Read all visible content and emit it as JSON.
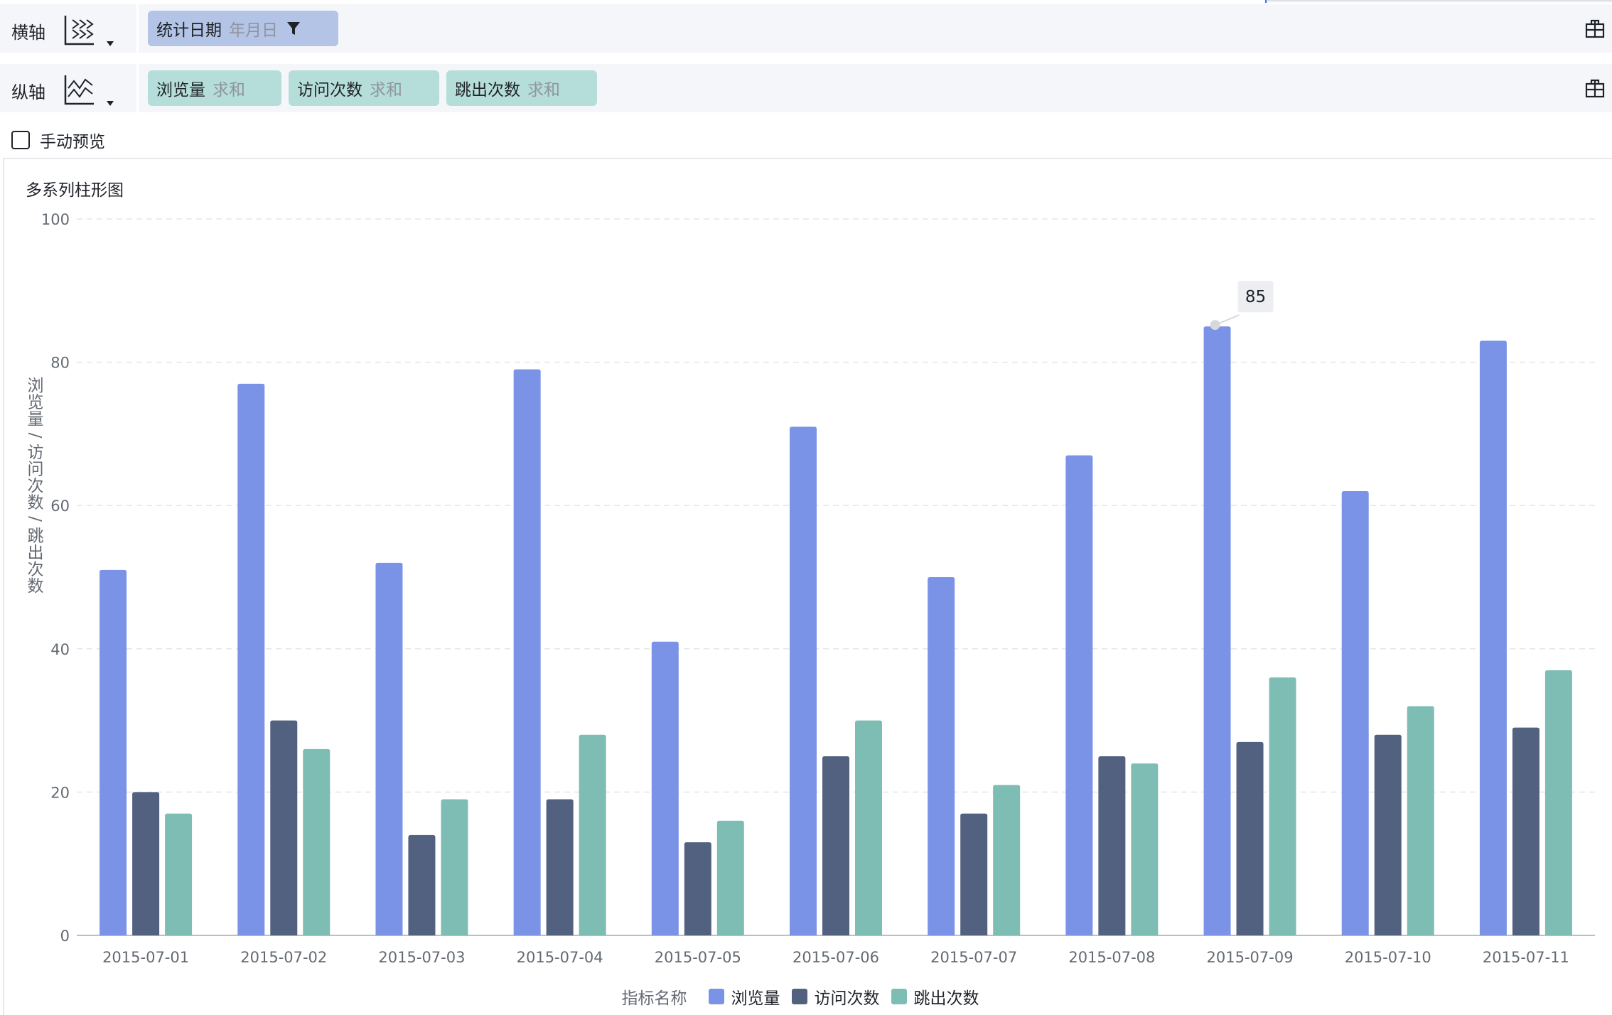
{
  "x_axis_row": {
    "label": "横轴",
    "icon": "horizontal-axis-icon",
    "field": {
      "name": "统计日期",
      "agg": "年月日",
      "icon": "filter-icon"
    },
    "right_icon": "layout-icon"
  },
  "y_axis_row": {
    "label": "纵轴",
    "icon": "vertical-axis-icon",
    "fields": [
      {
        "name": "浏览量",
        "agg": "求和"
      },
      {
        "name": "访问次数",
        "agg": "求和"
      },
      {
        "name": "跳出次数",
        "agg": "求和"
      }
    ],
    "right_icon": "layout-icon"
  },
  "manual_preview": {
    "label": "手动预览",
    "checked": false
  },
  "chart": {
    "title": "多系列柱形图",
    "legend_title": "指标名称",
    "tooltip_value": "85"
  },
  "colors": {
    "series1": "#7a93e6",
    "series2": "#52617f",
    "series3": "#7ebdb4",
    "x_pill": "#b3c4e6",
    "y_pill": "#b5ddd9"
  },
  "chart_data": {
    "type": "bar",
    "title": "多系列柱形图",
    "xlabel": "",
    "ylabel": "浏览量/访问次数/跳出次数",
    "ylim": [
      0,
      100
    ],
    "yticks": [
      0,
      20,
      40,
      60,
      80,
      100
    ],
    "grid": true,
    "legend_position": "bottom",
    "categories": [
      "2015-07-01",
      "2015-07-02",
      "2015-07-03",
      "2015-07-04",
      "2015-07-05",
      "2015-07-06",
      "2015-07-07",
      "2015-07-08",
      "2015-07-09",
      "2015-07-10",
      "2015-07-11"
    ],
    "series": [
      {
        "name": "浏览量",
        "values": [
          51,
          77,
          52,
          79,
          41,
          71,
          50,
          67,
          85,
          62,
          83
        ]
      },
      {
        "name": "访问次数",
        "values": [
          20,
          30,
          14,
          19,
          13,
          25,
          17,
          25,
          27,
          28,
          29
        ]
      },
      {
        "name": "跳出次数",
        "values": [
          17,
          26,
          19,
          28,
          16,
          30,
          21,
          24,
          36,
          32,
          37
        ]
      }
    ],
    "annotations": [
      {
        "category": "2015-07-09",
        "series": "浏览量",
        "text": "85"
      }
    ]
  }
}
